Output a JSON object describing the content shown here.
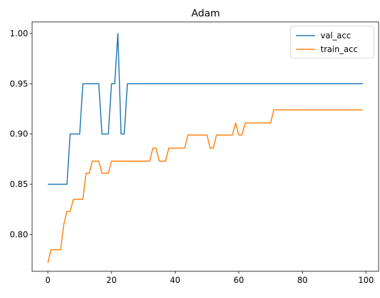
{
  "chart_data": {
    "type": "line",
    "title": "Adam",
    "xlabel": "",
    "ylabel": "",
    "xlim": [
      -4.95,
      103.95
    ],
    "ylim": [
      0.7635,
      1.0115
    ],
    "xticks": [
      0,
      20,
      40,
      60,
      80,
      100
    ],
    "xtick_labels": [
      "0",
      "20",
      "40",
      "60",
      "80",
      "100"
    ],
    "yticks": [
      0.8,
      0.85,
      0.9,
      0.95,
      1.0
    ],
    "ytick_labels": [
      "0.80",
      "0.85",
      "0.90",
      "0.95",
      "1.00"
    ],
    "grid": false,
    "legend_position": "top-right",
    "series": [
      {
        "name": "val_acc",
        "color": "#1f77b4",
        "x": [
          0,
          1,
          2,
          3,
          4,
          5,
          6,
          7,
          8,
          9,
          10,
          11,
          12,
          13,
          14,
          15,
          16,
          17,
          18,
          19,
          20,
          21,
          22,
          23,
          24,
          25,
          26,
          27,
          28,
          29,
          30,
          31,
          32,
          33,
          34,
          35,
          36,
          37,
          38,
          39,
          40,
          41,
          42,
          43,
          44,
          45,
          46,
          47,
          48,
          49,
          50,
          51,
          52,
          53,
          54,
          55,
          56,
          57,
          58,
          59,
          60,
          61,
          62,
          63,
          64,
          65,
          66,
          67,
          68,
          69,
          70,
          71,
          72,
          73,
          74,
          75,
          76,
          77,
          78,
          79,
          80,
          81,
          82,
          83,
          84,
          85,
          86,
          87,
          88,
          89,
          90,
          91,
          92,
          93,
          94,
          95,
          96,
          97,
          98,
          99
        ],
        "values": [
          0.85,
          0.85,
          0.85,
          0.85,
          0.85,
          0.85,
          0.85,
          0.9,
          0.9,
          0.9,
          0.9,
          0.95,
          0.95,
          0.95,
          0.95,
          0.95,
          0.95,
          0.9,
          0.9,
          0.9,
          0.95,
          0.95,
          1.0,
          0.9,
          0.9,
          0.95,
          0.95,
          0.95,
          0.95,
          0.95,
          0.95,
          0.95,
          0.95,
          0.95,
          0.95,
          0.95,
          0.95,
          0.95,
          0.95,
          0.95,
          0.95,
          0.95,
          0.95,
          0.95,
          0.95,
          0.95,
          0.95,
          0.95,
          0.95,
          0.95,
          0.95,
          0.95,
          0.95,
          0.95,
          0.95,
          0.95,
          0.95,
          0.95,
          0.95,
          0.95,
          0.95,
          0.95,
          0.95,
          0.95,
          0.95,
          0.95,
          0.95,
          0.95,
          0.95,
          0.95,
          0.95,
          0.95,
          0.95,
          0.95,
          0.95,
          0.95,
          0.95,
          0.95,
          0.95,
          0.95,
          0.95,
          0.95,
          0.95,
          0.95,
          0.95,
          0.95,
          0.95,
          0.95,
          0.95,
          0.95,
          0.95,
          0.95,
          0.95,
          0.95,
          0.95,
          0.95,
          0.95,
          0.95,
          0.95,
          0.95
        ]
      },
      {
        "name": "train_acc",
        "color": "#ff7f0e",
        "x": [
          0,
          1,
          2,
          3,
          4,
          5,
          6,
          7,
          8,
          9,
          10,
          11,
          12,
          13,
          14,
          15,
          16,
          17,
          18,
          19,
          20,
          21,
          22,
          23,
          24,
          25,
          26,
          27,
          28,
          29,
          30,
          31,
          32,
          33,
          34,
          35,
          36,
          37,
          38,
          39,
          40,
          41,
          42,
          43,
          44,
          45,
          46,
          47,
          48,
          49,
          50,
          51,
          52,
          53,
          54,
          55,
          56,
          57,
          58,
          59,
          60,
          61,
          62,
          63,
          64,
          65,
          66,
          67,
          68,
          69,
          70,
          71,
          72,
          73,
          74,
          75,
          76,
          77,
          78,
          79,
          80,
          81,
          82,
          83,
          84,
          85,
          86,
          87,
          88,
          89,
          90,
          91,
          92,
          93,
          94,
          95,
          96,
          97,
          98,
          99
        ],
        "values": [
          0.772,
          0.785,
          0.785,
          0.785,
          0.785,
          0.81,
          0.823,
          0.823,
          0.835,
          0.835,
          0.835,
          0.835,
          0.861,
          0.861,
          0.873,
          0.873,
          0.873,
          0.861,
          0.861,
          0.861,
          0.873,
          0.873,
          0.873,
          0.873,
          0.873,
          0.873,
          0.873,
          0.873,
          0.873,
          0.873,
          0.873,
          0.873,
          0.873,
          0.886,
          0.886,
          0.873,
          0.873,
          0.873,
          0.886,
          0.886,
          0.886,
          0.886,
          0.886,
          0.886,
          0.899,
          0.899,
          0.899,
          0.899,
          0.899,
          0.899,
          0.899,
          0.886,
          0.886,
          0.899,
          0.899,
          0.899,
          0.899,
          0.899,
          0.899,
          0.911,
          0.899,
          0.899,
          0.911,
          0.911,
          0.911,
          0.911,
          0.911,
          0.911,
          0.911,
          0.911,
          0.911,
          0.924,
          0.924,
          0.924,
          0.924,
          0.924,
          0.924,
          0.924,
          0.924,
          0.924,
          0.924,
          0.924,
          0.924,
          0.924,
          0.924,
          0.924,
          0.924,
          0.924,
          0.924,
          0.924,
          0.924,
          0.924,
          0.924,
          0.924,
          0.924,
          0.924,
          0.924,
          0.924,
          0.924,
          0.924
        ]
      }
    ]
  }
}
